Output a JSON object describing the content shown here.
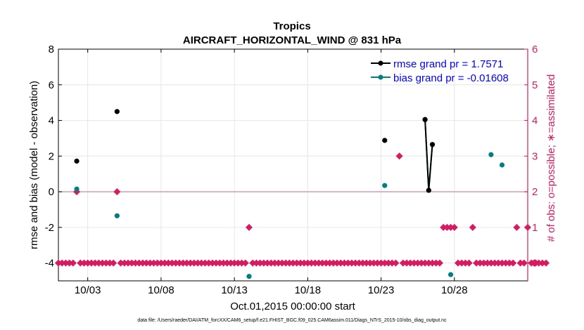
{
  "chart_data": {
    "type": "scatter",
    "title": "Tropics",
    "subtitle": "AIRCRAFT_HORIZONTAL_WIND @ 831 hPa",
    "xlabel": "Oct.01,2015 00:00:00 start",
    "ylabel": "rmse and bias (model - observation)",
    "ylabel_right": "# of obs: o=possible; ∗=assimilated",
    "footnote": "data file: /Users/raeder/DAI/ATM_forcXX/CAM6_setup/f.e21.FHIST_BGC.f09_025.CAM6assim.011/Diags_NTrS_2015-10/obs_diag_output.nc",
    "xlim": [
      1,
      33
    ],
    "ylim": [
      -5,
      8
    ],
    "ylim_right": [
      -0.5,
      6
    ],
    "grid": true,
    "legend_position": "top-right",
    "x_ticks": [
      3,
      8,
      13,
      18,
      23,
      28
    ],
    "x_tick_labels": [
      "10/03",
      "10/08",
      "10/13",
      "10/18",
      "10/23",
      "10/28"
    ],
    "y_ticks": [
      -4,
      -2,
      0,
      2,
      4,
      6,
      8
    ],
    "y_tick_labels": [
      "-4",
      "-2",
      "0",
      "2",
      "4",
      "6",
      "8"
    ],
    "y2_ticks": [
      0,
      1,
      2,
      3,
      4,
      5,
      6
    ],
    "y2_tick_labels": [
      "0",
      "1",
      "2",
      "3",
      "4",
      "5",
      "6"
    ],
    "colors": {
      "rmse": "#000000",
      "bias": "#008080",
      "obs": "#d81b60",
      "zero_line": "#c8a0b4",
      "grid": "#e6e6e6",
      "right_axis": "#d81b60"
    },
    "series": [
      {
        "name": "rmse",
        "legend": "rmse grand pr = 1.7571",
        "x": [
          2.25,
          5.0,
          23.25,
          26.0,
          26.25,
          26.5
        ],
        "values": [
          1.72,
          4.5,
          2.88,
          4.05,
          0.08,
          2.65
        ]
      },
      {
        "name": "bias",
        "legend": "bias grand pr = -0.01608",
        "x": [
          2.25,
          5.0,
          14.0,
          23.25,
          26.0,
          26.25,
          26.5,
          27.75,
          30.5,
          31.25
        ],
        "values": [
          0.15,
          -1.35,
          -4.75,
          0.35,
          4.05,
          0.08,
          2.65,
          -4.65,
          2.08,
          1.5
        ]
      },
      {
        "name": "obs_assimilated",
        "x_start": 1.0,
        "x_step": 0.25,
        "counts": [
          0,
          0,
          0,
          0,
          0,
          2,
          0,
          0,
          0,
          0,
          0,
          0,
          0,
          0,
          0,
          0,
          2,
          0,
          0,
          0,
          0,
          0,
          0,
          0,
          0,
          0,
          0,
          0,
          0,
          0,
          0,
          0,
          0,
          0,
          0,
          0,
          0,
          0,
          0,
          0,
          0,
          0,
          0,
          0,
          0,
          0,
          0,
          0,
          0,
          0,
          0,
          0,
          1,
          0,
          0,
          0,
          0,
          0,
          0,
          0,
          0,
          0,
          0,
          0,
          0,
          0,
          0,
          0,
          0,
          0,
          0,
          0,
          0,
          0,
          0,
          0,
          0,
          0,
          0,
          0,
          0,
          0,
          0,
          0,
          0,
          0,
          0,
          0,
          0,
          0,
          0,
          0,
          0,
          3,
          0,
          0,
          0,
          0,
          0,
          0,
          0,
          0,
          0,
          0,
          0,
          1,
          1,
          1,
          1,
          0,
          0,
          0,
          0,
          1,
          0,
          0,
          0,
          0,
          0,
          0,
          0,
          0,
          0,
          0,
          0,
          1,
          0,
          0,
          1,
          0,
          0,
          0,
          0,
          0
        ]
      }
    ]
  }
}
